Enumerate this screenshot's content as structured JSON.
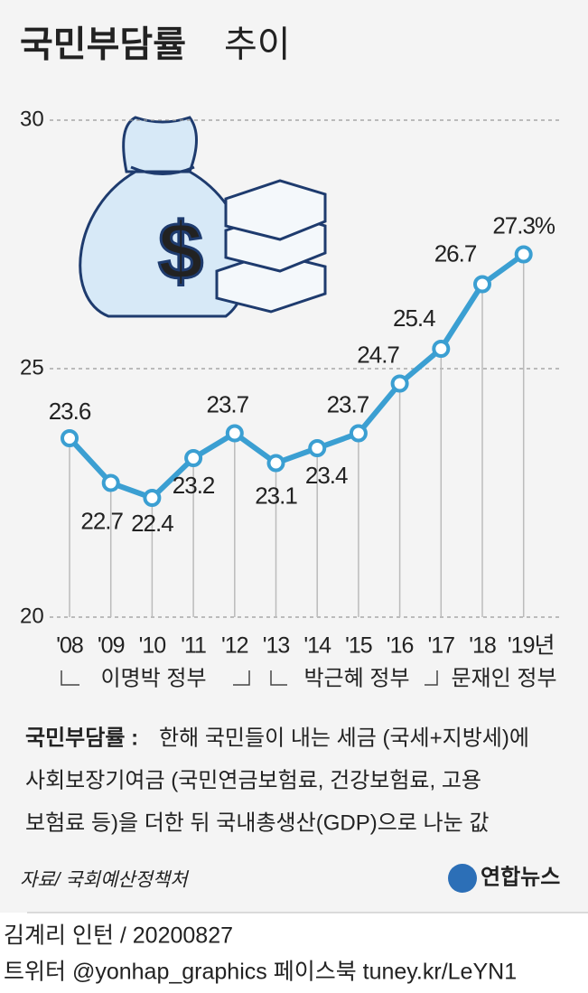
{
  "chart_data": {
    "type": "line",
    "title": [
      "국민부담률",
      "추이"
    ],
    "categories": [
      "'08",
      "'09",
      "'10",
      "'11",
      "'12",
      "'13",
      "'14",
      "'15",
      "'16",
      "'17",
      "'18",
      "'19년"
    ],
    "series": [
      {
        "color": "#3b9fd2",
        "values": [
          23.6,
          22.7,
          22.4,
          23.2,
          23.7,
          23.1,
          23.4,
          23.7,
          24.7,
          25.4,
          26.7,
          27.3
        ],
        "value_labels": [
          "23.6",
          "22.7",
          "22.4",
          "23.2",
          "23.7",
          "23.1",
          "23.4",
          "23.7",
          "24.7",
          "25.4",
          "26.7",
          "27.3%"
        ]
      }
    ],
    "ylim": [
      20,
      30
    ],
    "yticks": [
      20,
      25,
      30
    ],
    "grid": true,
    "periods": [
      "이명박 정부",
      "박근혜 정부",
      "문재인 정부"
    ]
  },
  "note": {
    "term": "국민부담률 :",
    "lines": [
      "한해 국민들이 내는 세금 (국세+지방세)에",
      "사회보장기여금 (국민연금보험료, 건강보험료, 고용",
      "보험료 등)을 더한 뒤 국내총생산(GDP)으로 나눈 값"
    ]
  },
  "source": "자료/ 국회예산정책처",
  "logo": "연합뉴스",
  "footer": [
    "김계리 인턴 / 20200827",
    "트위터 @yonhap_graphics  페이스북 tuney.kr/LeYN1"
  ]
}
